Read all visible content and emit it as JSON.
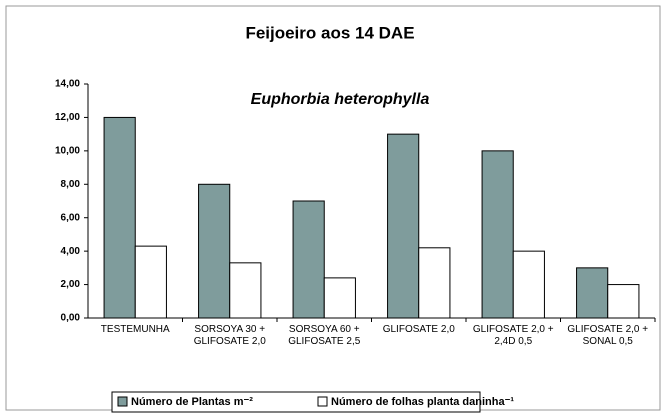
{
  "chart_data": {
    "type": "bar",
    "title": "Feijoeiro aos 14 DAE",
    "subtitle": "Euphorbia heterophylla",
    "categories": [
      "TESTEMUNHA",
      "SORSOYA 30 + GLIFOSATE 2,0",
      "SORSOYA 60 + GLIFOSATE 2,5",
      "GLIFOSATE 2,0",
      "GLIFOSATE 2,0 + 2,4D 0,5",
      "GLIFOSATE 2,0 + SONAL 0,5"
    ],
    "series": [
      {
        "name": "Número de Plantas m⁻²",
        "color": "#7f9c9c",
        "values": [
          12,
          8,
          7,
          11,
          10,
          3
        ]
      },
      {
        "name": "Número de folhas planta daninha⁻¹",
        "color": "#ffffff",
        "values": [
          4.3,
          3.3,
          2.4,
          4.2,
          4.0,
          2.0
        ]
      }
    ],
    "ylim": [
      0,
      14
    ],
    "yticks": [
      {
        "value": 0,
        "label": "0,00"
      },
      {
        "value": 2,
        "label": "2,00"
      },
      {
        "value": 4,
        "label": "4,00"
      },
      {
        "value": 6,
        "label": "6,00"
      },
      {
        "value": 8,
        "label": "8,00"
      },
      {
        "value": 10,
        "label": "10,00"
      },
      {
        "value": 12,
        "label": "12,00"
      },
      {
        "value": 14,
        "label": "14,00"
      }
    ]
  }
}
